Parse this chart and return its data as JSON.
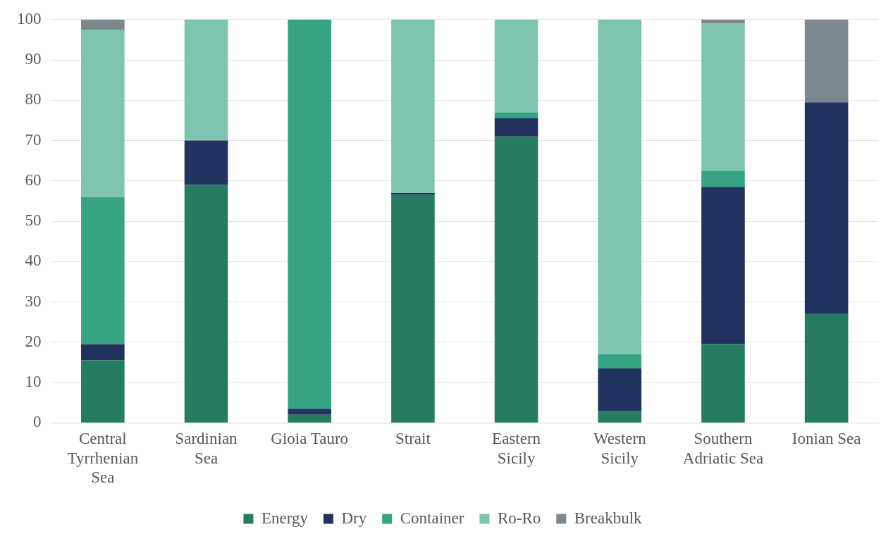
{
  "chart_data": {
    "type": "bar",
    "stacked": true,
    "categories": [
      "Central Tyrrhenian Sea",
      "Sardinian Sea",
      "Gioia Tauro",
      "Strait",
      "Eastern Sicily",
      "Western Sicily",
      "Southern Adriatic Sea",
      "Ionian Sea"
    ],
    "series": [
      {
        "name": "Energy",
        "color": "#267c62",
        "values": [
          15.5,
          59,
          2,
          56.5,
          71,
          3,
          19.5,
          27
        ]
      },
      {
        "name": "Dry",
        "color": "#22325e",
        "values": [
          4,
          11,
          1.5,
          0.5,
          4.5,
          10.5,
          39,
          52.5
        ]
      },
      {
        "name": "Container",
        "color": "#36a384",
        "values": [
          36.5,
          0,
          96.5,
          0,
          1.5,
          3.5,
          4,
          0
        ]
      },
      {
        "name": "Ro-Ro",
        "color": "#7fc4b0",
        "values": [
          41.5,
          30,
          0,
          43,
          23,
          83,
          36.5,
          0
        ]
      },
      {
        "name": "Breakbulk",
        "color": "#7d878e",
        "values": [
          2.5,
          0,
          0,
          0,
          0,
          0,
          1,
          20.5
        ]
      }
    ],
    "ylim": [
      0,
      100
    ],
    "yticks": [
      0,
      10,
      20,
      30,
      40,
      50,
      60,
      70,
      80,
      90,
      100
    ],
    "grid": "y",
    "legend": "bottom"
  }
}
